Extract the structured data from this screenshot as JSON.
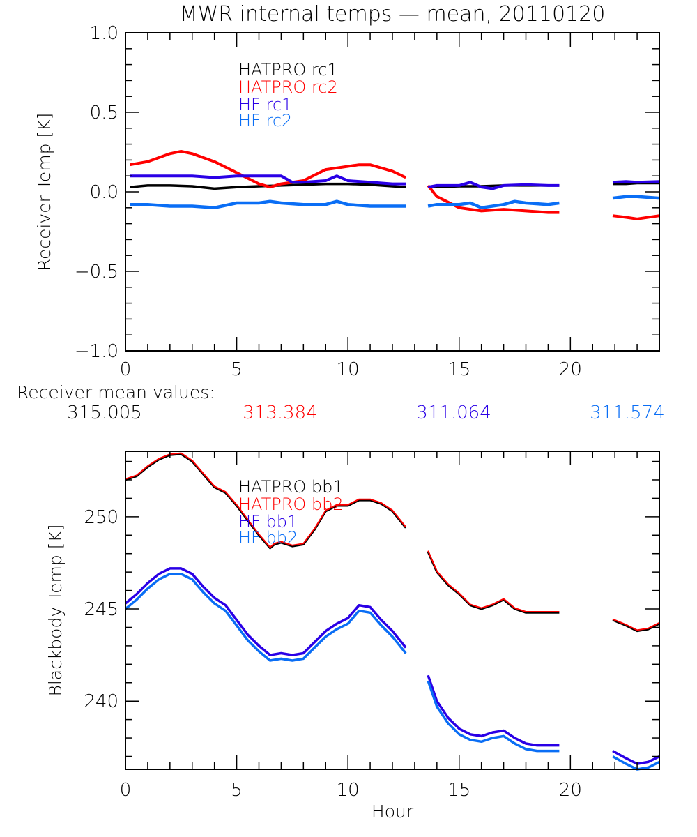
{
  "title": "MWR internal temps — mean, 20110120",
  "mean_section": {
    "label": "Receiver mean values:",
    "values": [
      {
        "text": "315.005",
        "color": "#000000"
      },
      {
        "text": "313.384",
        "color": "#ff0000"
      },
      {
        "text": "311.064",
        "color": "#2a00e6"
      },
      {
        "text": "311.574",
        "color": "#0a6ef5"
      }
    ]
  },
  "chart_data": [
    {
      "type": "line",
      "title": "MWR internal temps — mean, 20110120",
      "xlabel": "",
      "ylabel": "Receiver Temp [K]",
      "xlim": [
        0,
        24
      ],
      "ylim": [
        -1.0,
        1.0
      ],
      "xticks": [
        "0",
        "5",
        "10",
        "15",
        "20"
      ],
      "yticks": [
        "−1.0",
        "−0.5",
        "0.0",
        "0.5",
        "1.0"
      ],
      "ytick_values": [
        -1.0,
        -0.5,
        0.0,
        0.5,
        1.0
      ],
      "legend": "top-left",
      "grid": false,
      "series": [
        {
          "name": "HATPRO rc1",
          "color": "#000000",
          "x": [
            0.2,
            1,
            2,
            3,
            4,
            5,
            6,
            7,
            8,
            9,
            10,
            11,
            12,
            12.6,
            13.6,
            14,
            15,
            16,
            17,
            18,
            19,
            19.5,
            21.9,
            22.5,
            23,
            24
          ],
          "y": [
            0.03,
            0.04,
            0.04,
            0.035,
            0.02,
            0.03,
            0.035,
            0.04,
            0.045,
            0.05,
            0.05,
            0.045,
            0.035,
            0.03,
            0.03,
            0.03,
            0.035,
            0.035,
            0.04,
            0.04,
            0.04,
            0.04,
            0.05,
            0.05,
            0.055,
            0.055
          ],
          "gaps_after": [
            13,
            21
          ]
        },
        {
          "name": "HATPRO rc2",
          "color": "#ff0000",
          "x": [
            0.2,
            1,
            2,
            2.5,
            3,
            4,
            5,
            6,
            6.5,
            7,
            8,
            9,
            10,
            10.5,
            11,
            12,
            12.6,
            13.6,
            14,
            15,
            16,
            17,
            18,
            19,
            19.5,
            21.9,
            22.5,
            23,
            24
          ],
          "y": [
            0.17,
            0.19,
            0.24,
            0.255,
            0.24,
            0.19,
            0.12,
            0.05,
            0.03,
            0.05,
            0.07,
            0.14,
            0.16,
            0.17,
            0.17,
            0.13,
            0.09,
            0.04,
            -0.03,
            -0.1,
            -0.12,
            -0.11,
            -0.12,
            -0.13,
            -0.13,
            -0.15,
            -0.16,
            -0.17,
            -0.15
          ],
          "gaps_after": [
            16,
            24
          ]
        },
        {
          "name": "HF rc1",
          "color": "#2a00e6",
          "x": [
            0.2,
            1,
            2,
            3,
            4,
            5,
            6,
            7,
            7.5,
            8,
            9,
            9.5,
            10,
            11,
            12,
            12.6,
            13.6,
            14,
            15,
            15.5,
            16,
            16.5,
            17,
            18,
            19,
            19.5,
            21.9,
            22.5,
            23,
            24
          ],
          "y": [
            0.1,
            0.1,
            0.1,
            0.1,
            0.09,
            0.1,
            0.1,
            0.1,
            0.06,
            0.06,
            0.07,
            0.1,
            0.07,
            0.06,
            0.05,
            0.05,
            0.03,
            0.04,
            0.04,
            0.06,
            0.03,
            0.02,
            0.04,
            0.045,
            0.04,
            0.04,
            0.06,
            0.065,
            0.06,
            0.065
          ],
          "gaps_after": [
            15,
            25
          ]
        },
        {
          "name": "HF rc2",
          "color": "#0a6ef5",
          "x": [
            0.2,
            1,
            2,
            3,
            4,
            5,
            6,
            6.5,
            7,
            8,
            9,
            9.5,
            10,
            11,
            12,
            12.6,
            13.6,
            14,
            15,
            15.5,
            16,
            17,
            17.5,
            18,
            19,
            19.5,
            21.9,
            22.5,
            23,
            24
          ],
          "y": [
            -0.08,
            -0.08,
            -0.09,
            -0.09,
            -0.1,
            -0.07,
            -0.07,
            -0.06,
            -0.07,
            -0.08,
            -0.08,
            -0.06,
            -0.08,
            -0.09,
            -0.09,
            -0.09,
            -0.09,
            -0.08,
            -0.08,
            -0.07,
            -0.1,
            -0.08,
            -0.06,
            -0.07,
            -0.08,
            -0.07,
            -0.04,
            -0.03,
            -0.03,
            -0.04
          ],
          "gaps_after": [
            15,
            25
          ]
        }
      ]
    },
    {
      "type": "line",
      "xlabel": "Hour",
      "ylabel": "Blackbody Temp [K]",
      "xlim": [
        0,
        24
      ],
      "ylim": [
        236.3,
        253.55
      ],
      "xticks": [
        "0",
        "5",
        "10",
        "15",
        "20"
      ],
      "yticks": [
        "240",
        "245",
        "250"
      ],
      "ytick_values": [
        240,
        245,
        250
      ],
      "legend": "top-center",
      "grid": false,
      "series": [
        {
          "name": "HATPRO bb1",
          "color": "#000000",
          "x": [
            0,
            0.5,
            1,
            1.5,
            2,
            2.5,
            3,
            3.5,
            4,
            4.5,
            5,
            5.5,
            6,
            6.5,
            6.7,
            7,
            7.5,
            8,
            8.5,
            9,
            9.5,
            10,
            10.5,
            11,
            11.5,
            12,
            12.6,
            13.6,
            14,
            14.5,
            15,
            15.5,
            16,
            16.5,
            17,
            17.5,
            18,
            18.5,
            19,
            19.5,
            21.9,
            22.5,
            23,
            23.5,
            24
          ],
          "y": [
            252.0,
            252.2,
            252.7,
            253.1,
            253.35,
            253.4,
            253.0,
            252.3,
            251.6,
            251.3,
            250.6,
            249.8,
            249.0,
            248.3,
            248.5,
            248.6,
            248.4,
            248.5,
            249.3,
            250.3,
            250.6,
            250.6,
            250.9,
            250.9,
            250.7,
            250.3,
            249.4,
            248.1,
            247.0,
            246.3,
            245.8,
            245.2,
            245.0,
            245.2,
            245.5,
            245.0,
            244.8,
            244.8,
            244.8,
            244.8,
            244.4,
            244.1,
            243.8,
            243.9,
            244.2
          ],
          "gaps_after": [
            26,
            39
          ]
        },
        {
          "name": "HATPRO bb2",
          "color": "#ff0000",
          "x": [
            0,
            0.5,
            1,
            1.5,
            2,
            2.5,
            3,
            3.5,
            4,
            4.5,
            5,
            5.5,
            6,
            6.5,
            6.7,
            7,
            7.5,
            8,
            8.5,
            9,
            9.5,
            10,
            10.5,
            11,
            11.5,
            12,
            12.6,
            13.6,
            14,
            14.5,
            15,
            15.5,
            16,
            16.5,
            17,
            17.5,
            18,
            18.5,
            19,
            19.5,
            21.9,
            22.5,
            23,
            23.5,
            24
          ],
          "y": [
            252.05,
            252.25,
            252.75,
            253.15,
            253.4,
            253.45,
            253.05,
            252.35,
            251.65,
            251.35,
            250.65,
            249.85,
            249.05,
            248.35,
            248.55,
            248.65,
            248.45,
            248.55,
            249.35,
            250.35,
            250.65,
            250.65,
            250.95,
            250.95,
            250.75,
            250.35,
            249.45,
            248.15,
            247.05,
            246.35,
            245.85,
            245.25,
            245.05,
            245.25,
            245.55,
            245.05,
            244.85,
            244.85,
            244.85,
            244.85,
            244.45,
            244.15,
            243.85,
            243.95,
            244.25
          ],
          "gaps_after": [
            26,
            39
          ]
        },
        {
          "name": "HF bb1",
          "color": "#2a00e6",
          "x": [
            0,
            0.5,
            1,
            1.5,
            2,
            2.5,
            3,
            3.5,
            4,
            4.5,
            5,
            5.5,
            6,
            6.5,
            7,
            7.5,
            8,
            8.5,
            9,
            9.5,
            10,
            10.5,
            11,
            11.5,
            12,
            12.6,
            13.6,
            14,
            14.5,
            15,
            15.5,
            16,
            16.5,
            17,
            17.5,
            18,
            18.5,
            19,
            19.5,
            21.9,
            22.5,
            23,
            23.5,
            24
          ],
          "y": [
            245.3,
            245.8,
            246.4,
            246.9,
            247.2,
            247.2,
            246.9,
            246.2,
            245.6,
            245.2,
            244.4,
            243.6,
            243.0,
            242.5,
            242.6,
            242.5,
            242.6,
            243.2,
            243.8,
            244.2,
            244.5,
            245.2,
            245.1,
            244.4,
            243.8,
            242.9,
            241.4,
            240.0,
            239.1,
            238.5,
            238.2,
            238.1,
            238.3,
            238.4,
            238.0,
            237.7,
            237.6,
            237.6,
            237.6,
            237.3,
            236.9,
            236.6,
            236.7,
            237.0
          ],
          "gaps_after": [
            25,
            38
          ]
        },
        {
          "name": "HF bb2",
          "color": "#0a6ef5",
          "x": [
            0,
            0.5,
            1,
            1.5,
            2,
            2.5,
            3,
            3.5,
            4,
            4.5,
            5,
            5.5,
            6,
            6.5,
            7,
            7.5,
            8,
            8.5,
            9,
            9.5,
            10,
            10.5,
            11,
            11.5,
            12,
            12.6,
            13.6,
            14,
            14.5,
            15,
            15.5,
            16,
            16.5,
            17,
            17.5,
            18,
            18.5,
            19,
            19.5,
            21.9,
            22.5,
            23,
            23.5,
            24
          ],
          "y": [
            245.0,
            245.5,
            246.1,
            246.6,
            246.9,
            246.9,
            246.6,
            245.9,
            245.3,
            244.9,
            244.1,
            243.3,
            242.7,
            242.2,
            242.3,
            242.2,
            242.3,
            242.9,
            243.5,
            243.9,
            244.2,
            244.9,
            244.8,
            244.1,
            243.5,
            242.6,
            241.1,
            239.7,
            238.8,
            238.2,
            237.9,
            237.8,
            238.0,
            238.1,
            237.7,
            237.4,
            237.3,
            237.3,
            237.3,
            237.0,
            236.6,
            236.3,
            236.4,
            236.7
          ],
          "gaps_after": [
            25,
            38
          ]
        }
      ]
    }
  ]
}
